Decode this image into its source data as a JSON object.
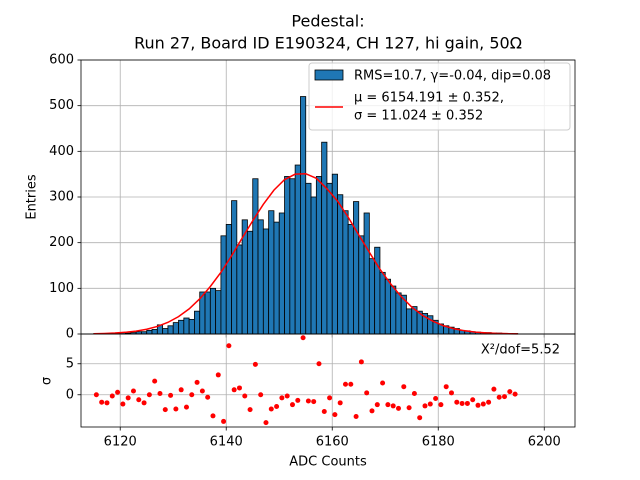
{
  "chart_data": [
    {
      "type": "histogram",
      "title": [
        "Pedestal:",
        "Run 27, Board ID E190324, CH 127, hi gain, 50Ω"
      ],
      "ylabel": "Entries",
      "bins": [
        6115,
        6116,
        6117,
        6118,
        6119,
        6120,
        6121,
        6122,
        6123,
        6124,
        6125,
        6126,
        6127,
        6128,
        6129,
        6130,
        6131,
        6132,
        6133,
        6134,
        6135,
        6136,
        6137,
        6138,
        6139,
        6140,
        6141,
        6142,
        6143,
        6144,
        6145,
        6146,
        6147,
        6148,
        6149,
        6150,
        6151,
        6152,
        6153,
        6154,
        6155,
        6156,
        6157,
        6158,
        6159,
        6160,
        6161,
        6162,
        6163,
        6164,
        6165,
        6166,
        6167,
        6168,
        6169,
        6170,
        6171,
        6172,
        6173,
        6174,
        6175,
        6176,
        6177,
        6178,
        6179,
        6180,
        6181,
        6182,
        6183,
        6184,
        6185,
        6186,
        6187,
        6188,
        6189,
        6190,
        6191,
        6192,
        6193,
        6194,
        6195
      ],
      "series": [
        {
          "name": "RMS=10.7, γ=-0.04, dip=0.08",
          "type": "histogram",
          "color": "#1f77b4",
          "edgecolor": "#000000",
          "values": [
            1,
            1,
            1,
            1,
            2,
            3,
            2,
            3,
            5,
            5,
            8,
            10,
            20,
            12,
            18,
            25,
            30,
            35,
            32,
            50,
            92,
            92,
            100,
            95,
            215,
            240,
            292,
            195,
            250,
            225,
            340,
            250,
            230,
            270,
            245,
            265,
            345,
            340,
            370,
            520,
            330,
            300,
            345,
            420,
            330,
            350,
            305,
            270,
            240,
            290,
            215,
            265,
            165,
            190,
            135,
            120,
            105,
            90,
            85,
            55,
            60,
            50,
            45,
            40,
            30,
            22,
            18,
            15,
            12,
            8,
            7,
            5,
            4,
            3,
            3,
            2,
            2,
            1,
            1,
            1
          ]
        },
        {
          "name": [
            "μ = 6154.191 ± 0.352,",
            "σ = 11.024 ± 0.352"
          ],
          "type": "line",
          "color": "#ff0000",
          "x": [
            6115,
            6117,
            6119,
            6121,
            6123,
            6125,
            6127,
            6129,
            6131,
            6133,
            6135,
            6137,
            6139,
            6141,
            6143,
            6145,
            6147,
            6149,
            6151,
            6153,
            6155,
            6157,
            6159,
            6161,
            6163,
            6165,
            6167,
            6169,
            6171,
            6173,
            6175,
            6177,
            6179,
            6181,
            6183,
            6185,
            6187,
            6189,
            6191,
            6193,
            6195
          ],
          "values": [
            0.6,
            1.2,
            2.1,
            3.7,
            6.3,
            10.4,
            16.5,
            25.5,
            38,
            55,
            77,
            104,
            135,
            171,
            210,
            248,
            284,
            315,
            338,
            350,
            351,
            341,
            318,
            291,
            256,
            217,
            179,
            142,
            110,
            82,
            59,
            41,
            28,
            18,
            11.4,
            7,
            4.1,
            2.4,
            1.3,
            0.7,
            0.4
          ]
        }
      ],
      "xlim": [
        6112.6,
        6205.8
      ],
      "ylim": [
        0,
        600
      ],
      "xticks": [
        6120,
        6140,
        6160,
        6180,
        6200
      ],
      "yticks": [
        0,
        100,
        200,
        300,
        400,
        500,
        600
      ],
      "grid": true,
      "legend": "upper right"
    },
    {
      "type": "scatter",
      "xlabel": "ADC Counts",
      "ylabel": "σ",
      "annotation": "X²/dof=5.52",
      "color": "#ff0000",
      "x": [
        6115.5,
        6116.5,
        6117.5,
        6118.5,
        6119.5,
        6120.5,
        6121.5,
        6122.5,
        6123.5,
        6124.5,
        6125.5,
        6126.5,
        6127.5,
        6128.5,
        6129.5,
        6130.5,
        6131.5,
        6132.5,
        6133.5,
        6134.5,
        6135.5,
        6136.5,
        6137.5,
        6138.5,
        6139.5,
        6140.5,
        6141.5,
        6142.5,
        6143.5,
        6144.5,
        6145.5,
        6146.5,
        6147.5,
        6148.5,
        6149.5,
        6150.5,
        6151.5,
        6152.5,
        6153.5,
        6154.5,
        6155.5,
        6156.5,
        6157.5,
        6158.5,
        6159.5,
        6160.5,
        6161.5,
        6162.5,
        6163.5,
        6164.5,
        6165.5,
        6166.5,
        6167.5,
        6168.5,
        6169.5,
        6170.5,
        6171.5,
        6172.5,
        6173.5,
        6174.5,
        6175.5,
        6176.5,
        6177.5,
        6178.5,
        6179.5,
        6180.5,
        6181.5,
        6182.5,
        6183.5,
        6184.5,
        6185.5,
        6186.5,
        6187.5,
        6188.5,
        6189.5,
        6190.5,
        6191.5,
        6192.5,
        6193.5,
        6194.5
      ],
      "values": [
        0,
        -1.2,
        -1.3,
        -0.2,
        0.4,
        -1.5,
        -0.5,
        0.6,
        -0.8,
        -1.3,
        0,
        2.2,
        0.2,
        -2.4,
        -0.1,
        -2.3,
        0.8,
        -2.0,
        0,
        2.0,
        0.6,
        -0.4,
        -3.4,
        3.2,
        -4.3,
        7.9,
        0.8,
        1.1,
        -0.2,
        -2.4,
        4.9,
        0,
        -4.5,
        -2.3,
        -1.9,
        -0.5,
        -0.2,
        -1.6,
        -0.9,
        9.2,
        -1.0,
        -1.1,
        5.0,
        -2.7,
        -0.5,
        -3.2,
        -1.3,
        1.7,
        1.7,
        -3.5,
        5.3,
        0.3,
        -2.6,
        -1.6,
        1.9,
        -1.6,
        -1.8,
        -2.2,
        1.3,
        -2.1,
        0.2,
        -3.7,
        -1.8,
        -1.5,
        -0.6,
        -1.6,
        1.3,
        0.3,
        -1.2,
        -1.4,
        -1.4,
        -0.8,
        -1.7,
        -1.5,
        -1.2,
        0.9,
        -0.4,
        -0.3,
        0.5,
        0.1
      ],
      "xlim": [
        6112.6,
        6205.8
      ],
      "ylim": [
        -5.2,
        9.8
      ],
      "xticks": [
        6120,
        6140,
        6160,
        6180,
        6200
      ],
      "yticks": [
        0,
        5
      ],
      "grid": true
    }
  ]
}
